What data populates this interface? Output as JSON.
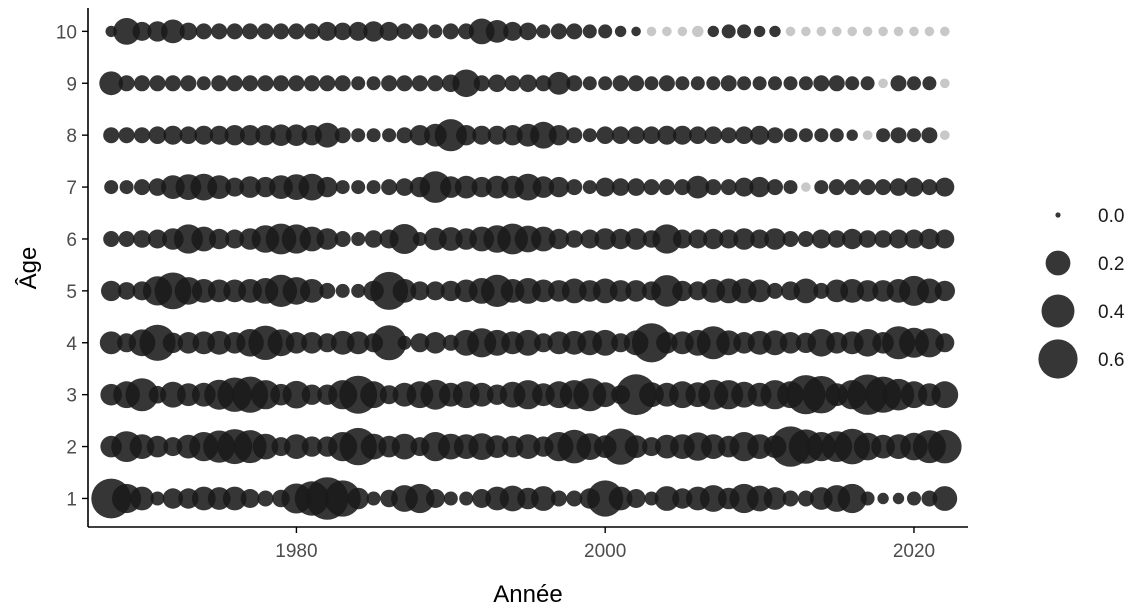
{
  "chart_data": {
    "type": "scatter",
    "subtype": "bubble",
    "xlabel": "Année",
    "ylabel": "Âge",
    "xlim": [
      1966.5,
      2023.5
    ],
    "ylim": [
      0.45,
      10.45
    ],
    "x_ticks": [
      1980,
      2000,
      2020
    ],
    "y_ticks": [
      1,
      2,
      3,
      4,
      5,
      6,
      7,
      8,
      9,
      10
    ],
    "grid": false,
    "x_years": [
      1968,
      1969,
      1970,
      1971,
      1972,
      1973,
      1974,
      1975,
      1976,
      1977,
      1978,
      1979,
      1980,
      1981,
      1982,
      1983,
      1984,
      1985,
      1986,
      1987,
      1988,
      1989,
      1990,
      1991,
      1992,
      1993,
      1994,
      1995,
      1996,
      1997,
      1998,
      1999,
      2000,
      2001,
      2002,
      2003,
      2004,
      2005,
      2006,
      2007,
      2008,
      2009,
      2010,
      2011,
      2012,
      2013,
      2014,
      2015,
      2016,
      2017,
      2018,
      2019,
      2020,
      2021,
      2022
    ],
    "ages": [
      1,
      2,
      3,
      4,
      5,
      6,
      7,
      8,
      9,
      10
    ],
    "values_by_age": [
      [
        0.62,
        0.3,
        0.18,
        0.04,
        0.12,
        0.12,
        0.18,
        0.16,
        0.18,
        0.1,
        0.06,
        0.08,
        0.32,
        0.44,
        0.72,
        0.5,
        0.14,
        0.04,
        0.08,
        0.24,
        0.3,
        0.1,
        0.04,
        0.04,
        0.1,
        0.18,
        0.22,
        0.14,
        0.2,
        0.06,
        0.06,
        0.12,
        0.5,
        0.18,
        0.1,
        0.04,
        0.2,
        0.12,
        0.18,
        0.24,
        0.14,
        0.3,
        0.22,
        0.16,
        0.06,
        0.06,
        0.16,
        0.24,
        0.3,
        0.04,
        0.02,
        0.02,
        0.04,
        0.06,
        0.2
      ],
      [
        0.14,
        0.34,
        0.2,
        0.14,
        0.1,
        0.18,
        0.3,
        0.38,
        0.46,
        0.4,
        0.22,
        0.1,
        0.2,
        0.12,
        0.12,
        0.3,
        0.54,
        0.22,
        0.14,
        0.22,
        0.1,
        0.3,
        0.22,
        0.2,
        0.24,
        0.16,
        0.14,
        0.2,
        0.12,
        0.3,
        0.42,
        0.24,
        0.16,
        0.5,
        0.16,
        0.1,
        0.18,
        0.2,
        0.28,
        0.2,
        0.14,
        0.3,
        0.2,
        0.16,
        0.64,
        0.44,
        0.3,
        0.34,
        0.48,
        0.26,
        0.18,
        0.2,
        0.26,
        0.4,
        0.42
      ],
      [
        0.14,
        0.24,
        0.4,
        0.08,
        0.22,
        0.16,
        0.18,
        0.32,
        0.44,
        0.5,
        0.3,
        0.14,
        0.26,
        0.12,
        0.12,
        0.3,
        0.56,
        0.24,
        0.1,
        0.18,
        0.24,
        0.32,
        0.18,
        0.24,
        0.18,
        0.12,
        0.22,
        0.3,
        0.16,
        0.24,
        0.3,
        0.4,
        0.2,
        0.1,
        0.66,
        0.2,
        0.18,
        0.24,
        0.2,
        0.32,
        0.3,
        0.22,
        0.18,
        0.3,
        0.24,
        0.6,
        0.54,
        0.16,
        0.3,
        0.64,
        0.5,
        0.36,
        0.24,
        0.16,
        0.24
      ],
      [
        0.16,
        0.1,
        0.24,
        0.5,
        0.12,
        0.14,
        0.16,
        0.18,
        0.14,
        0.26,
        0.44,
        0.24,
        0.14,
        0.14,
        0.1,
        0.18,
        0.16,
        0.1,
        0.46,
        0.04,
        0.1,
        0.14,
        0.06,
        0.22,
        0.3,
        0.22,
        0.16,
        0.22,
        0.1,
        0.16,
        0.18,
        0.2,
        0.22,
        0.1,
        0.2,
        0.6,
        0.14,
        0.16,
        0.22,
        0.4,
        0.2,
        0.14,
        0.18,
        0.2,
        0.14,
        0.12,
        0.26,
        0.14,
        0.16,
        0.26,
        0.14,
        0.4,
        0.32,
        0.3,
        0.1
      ],
      [
        0.12,
        0.08,
        0.1,
        0.3,
        0.52,
        0.26,
        0.18,
        0.16,
        0.16,
        0.18,
        0.22,
        0.38,
        0.26,
        0.18,
        0.06,
        0.04,
        0.04,
        0.12,
        0.56,
        0.18,
        0.1,
        0.1,
        0.12,
        0.16,
        0.22,
        0.38,
        0.18,
        0.22,
        0.16,
        0.14,
        0.2,
        0.14,
        0.2,
        0.14,
        0.14,
        0.1,
        0.36,
        0.12,
        0.1,
        0.18,
        0.2,
        0.2,
        0.16,
        0.06,
        0.1,
        0.2,
        0.06,
        0.16,
        0.18,
        0.14,
        0.14,
        0.18,
        0.32,
        0.2,
        0.12
      ],
      [
        0.06,
        0.06,
        0.08,
        0.1,
        0.14,
        0.3,
        0.2,
        0.12,
        0.1,
        0.14,
        0.26,
        0.34,
        0.3,
        0.2,
        0.14,
        0.06,
        0.04,
        0.08,
        0.1,
        0.32,
        0.04,
        0.16,
        0.18,
        0.14,
        0.2,
        0.26,
        0.34,
        0.24,
        0.2,
        0.12,
        0.08,
        0.1,
        0.14,
        0.12,
        0.14,
        0.08,
        0.3,
        0.1,
        0.1,
        0.12,
        0.1,
        0.14,
        0.1,
        0.14,
        0.06,
        0.06,
        0.1,
        0.08,
        0.12,
        0.08,
        0.08,
        0.1,
        0.1,
        0.12,
        0.1
      ],
      [
        0.04,
        0.04,
        0.06,
        0.08,
        0.18,
        0.22,
        0.24,
        0.18,
        0.1,
        0.14,
        0.12,
        0.18,
        0.22,
        0.24,
        0.12,
        0.04,
        0.04,
        0.04,
        0.06,
        0.08,
        0.12,
        0.36,
        0.14,
        0.16,
        0.12,
        0.16,
        0.16,
        0.24,
        0.14,
        0.12,
        0.06,
        0.04,
        0.1,
        0.08,
        0.08,
        0.06,
        0.06,
        0.06,
        0.16,
        0.06,
        0.06,
        0.1,
        0.12,
        0.06,
        0.04,
        0.01,
        0.04,
        0.06,
        0.06,
        0.06,
        0.06,
        0.08,
        0.1,
        0.06,
        0.1
      ],
      [
        0.06,
        0.06,
        0.06,
        0.08,
        0.1,
        0.08,
        0.1,
        0.1,
        0.12,
        0.12,
        0.12,
        0.14,
        0.14,
        0.12,
        0.2,
        0.06,
        0.04,
        0.04,
        0.04,
        0.06,
        0.12,
        0.16,
        0.38,
        0.12,
        0.1,
        0.1,
        0.12,
        0.16,
        0.24,
        0.12,
        0.06,
        0.04,
        0.08,
        0.08,
        0.08,
        0.08,
        0.1,
        0.1,
        0.08,
        0.08,
        0.06,
        0.08,
        0.1,
        0.06,
        0.04,
        0.04,
        0.04,
        0.04,
        0.02,
        0.01,
        0.04,
        0.06,
        0.04,
        0.06,
        0.01
      ],
      [
        0.18,
        0.06,
        0.06,
        0.06,
        0.06,
        0.06,
        0.04,
        0.06,
        0.06,
        0.06,
        0.06,
        0.06,
        0.06,
        0.06,
        0.06,
        0.06,
        0.04,
        0.04,
        0.06,
        0.06,
        0.06,
        0.06,
        0.08,
        0.26,
        0.06,
        0.08,
        0.06,
        0.08,
        0.06,
        0.16,
        0.06,
        0.04,
        0.04,
        0.06,
        0.06,
        0.04,
        0.06,
        0.04,
        0.04,
        0.04,
        0.06,
        0.04,
        0.04,
        0.04,
        0.04,
        0.04,
        0.06,
        0.06,
        0.04,
        0.04,
        0.01,
        0.06,
        0.04,
        0.04,
        0.01
      ],
      [
        0.02,
        0.24,
        0.1,
        0.12,
        0.18,
        0.08,
        0.06,
        0.06,
        0.06,
        0.06,
        0.06,
        0.06,
        0.06,
        0.06,
        0.1,
        0.08,
        0.1,
        0.12,
        0.1,
        0.06,
        0.06,
        0.04,
        0.06,
        0.06,
        0.22,
        0.16,
        0.1,
        0.08,
        0.04,
        0.06,
        0.06,
        0.04,
        0.04,
        0.02,
        0.01,
        0.01,
        0.01,
        0.01,
        0.02,
        0.02,
        0.04,
        0.04,
        0.02,
        0.02,
        0.01,
        0.01,
        0.01,
        0.01,
        0.01,
        0.01,
        0.01,
        0.01,
        0.01,
        0.01,
        0.01
      ]
    ],
    "highlight_points": [
      [
        2003,
        10
      ],
      [
        2004,
        10
      ],
      [
        2005,
        10
      ],
      [
        2006,
        10
      ],
      [
        2012,
        10
      ],
      [
        2013,
        10
      ],
      [
        2014,
        10
      ],
      [
        2015,
        10
      ],
      [
        2016,
        10
      ],
      [
        2017,
        10
      ],
      [
        2018,
        10
      ],
      [
        2019,
        10
      ],
      [
        2020,
        10
      ],
      [
        2021,
        10
      ],
      [
        2022,
        10
      ],
      [
        2018,
        9
      ],
      [
        2022,
        9
      ],
      [
        2017,
        8
      ],
      [
        2022,
        8
      ],
      [
        2013,
        7
      ]
    ],
    "colors": {
      "point": "#1a1a1a",
      "point_light": "#c8c8c8",
      "axis": "#000000",
      "tick_label": "#4d4d4d"
    },
    "legend": {
      "position": "right",
      "title": "",
      "size_values": [
        0.0,
        0.2,
        0.4,
        0.6
      ],
      "labels": [
        "0.0",
        "0.2",
        "0.4",
        "0.6"
      ]
    }
  }
}
